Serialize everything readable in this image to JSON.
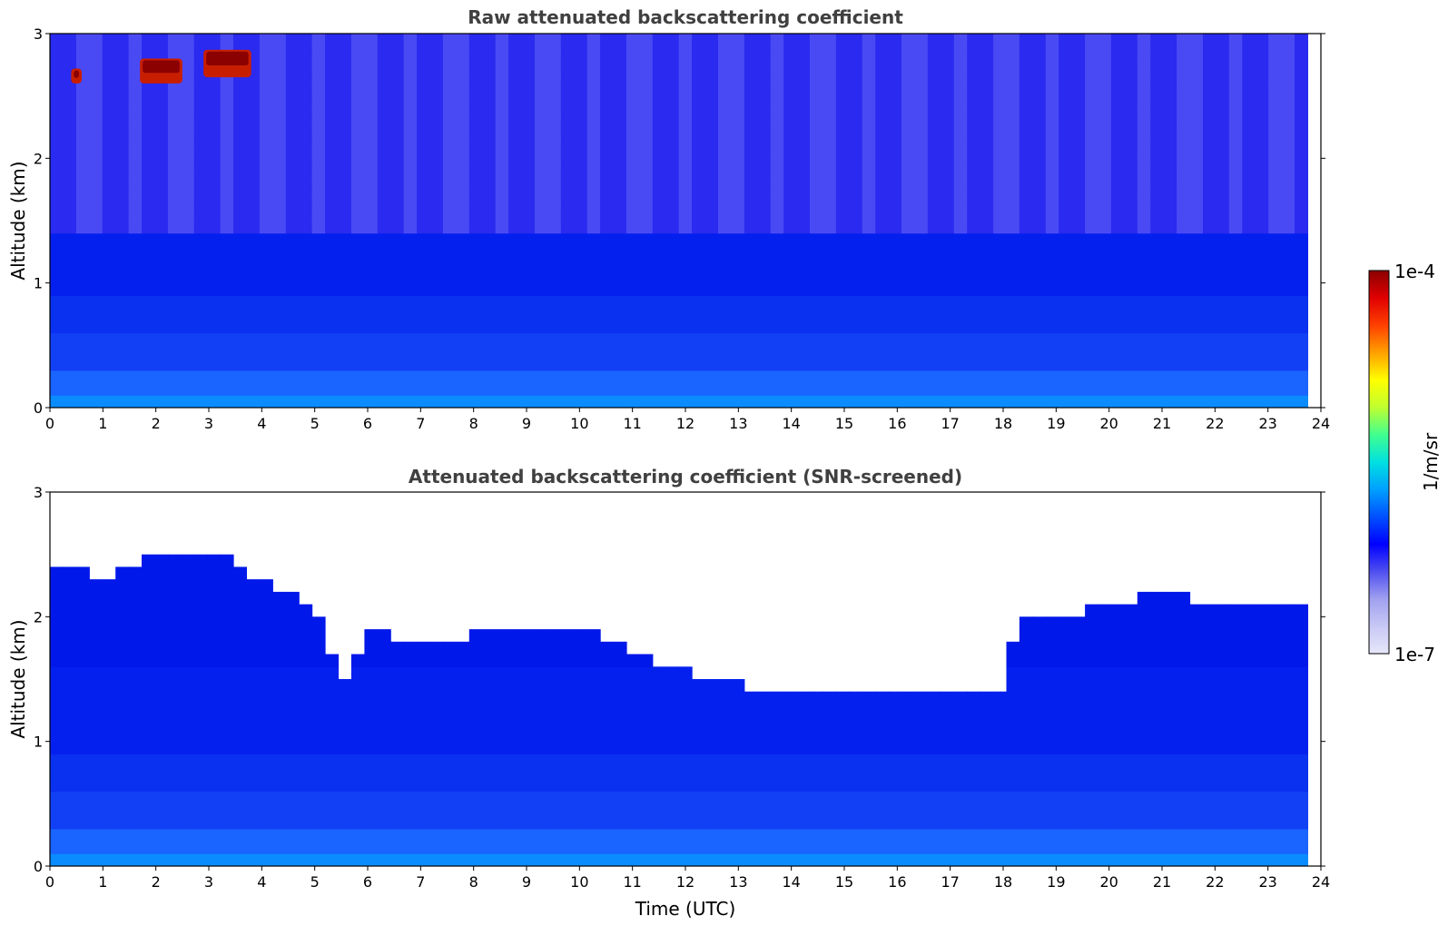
{
  "chart_data": [
    {
      "type": "heatmap",
      "title": "Raw attenuated backscattering coefficient",
      "xlabel": "",
      "ylabel": "Altitude (km)",
      "xlim": [
        0,
        24
      ],
      "ylim": [
        0,
        3
      ],
      "x_ticks": [
        "0",
        "1",
        "2",
        "3",
        "4",
        "5",
        "6",
        "7",
        "8",
        "9",
        "10",
        "11",
        "12",
        "13",
        "14",
        "15",
        "16",
        "17",
        "18",
        "19",
        "20",
        "21",
        "22",
        "23",
        "24"
      ],
      "y_ticks": [
        "0",
        "1",
        "2",
        "3"
      ],
      "data_end_time": 23.75,
      "screened": false,
      "features": [
        {
          "label": "cloud",
          "x_range": [
            1.7,
            2.5
          ],
          "y_range": [
            2.6,
            2.8
          ]
        },
        {
          "label": "cloud",
          "x_range": [
            2.9,
            3.8
          ],
          "y_range": [
            2.65,
            2.87
          ]
        },
        {
          "label": "cloud",
          "x_range": [
            0.4,
            0.6
          ],
          "y_range": [
            2.6,
            2.72
          ]
        }
      ]
    },
    {
      "type": "heatmap",
      "title": "Attenuated backscattering coefficient (SNR-screened)",
      "xlabel": "Time (UTC)",
      "ylabel": "Altitude (km)",
      "xlim": [
        0,
        24
      ],
      "ylim": [
        0,
        3
      ],
      "x_ticks": [
        "0",
        "1",
        "2",
        "3",
        "4",
        "5",
        "6",
        "7",
        "8",
        "9",
        "10",
        "11",
        "12",
        "13",
        "14",
        "15",
        "16",
        "17",
        "18",
        "19",
        "20",
        "21",
        "22",
        "23",
        "24"
      ],
      "y_ticks": [
        "0",
        "1",
        "2",
        "3"
      ],
      "data_end_time": 23.75,
      "screened": true,
      "signal_top_km": [
        [
          0,
          2.45
        ],
        [
          1,
          2.3
        ],
        [
          2,
          2.5
        ],
        [
          3,
          2.55
        ],
        [
          4,
          2.3
        ],
        [
          5,
          2.1
        ],
        [
          5.5,
          1.4
        ],
        [
          6,
          1.95
        ],
        [
          7,
          1.75
        ],
        [
          8,
          1.85
        ],
        [
          9,
          1.9
        ],
        [
          10,
          1.95
        ],
        [
          11,
          1.75
        ],
        [
          12,
          1.55
        ],
        [
          13,
          1.45
        ],
        [
          14,
          1.38
        ],
        [
          15,
          1.35
        ],
        [
          16,
          1.35
        ],
        [
          17,
          1.38
        ],
        [
          18,
          1.45
        ],
        [
          18.3,
          1.95
        ],
        [
          19,
          2.0
        ],
        [
          20,
          2.1
        ],
        [
          21,
          2.2
        ],
        [
          22,
          2.1
        ],
        [
          23,
          2.1
        ],
        [
          23.75,
          2.05
        ]
      ]
    }
  ],
  "colorbar": {
    "label": "1/m/sr",
    "max_label": "1e-4",
    "min_label": "1e-7",
    "scale": "log",
    "colors": [
      "#e6e6fa",
      "#c8c8f5",
      "#a0a0f0",
      "#5050f0",
      "#0000ff",
      "#0050ff",
      "#00a0ff",
      "#00e0e0",
      "#40ff90",
      "#c0ff30",
      "#ffff00",
      "#ffa000",
      "#ff4000",
      "#e00000",
      "#8b0000"
    ]
  }
}
